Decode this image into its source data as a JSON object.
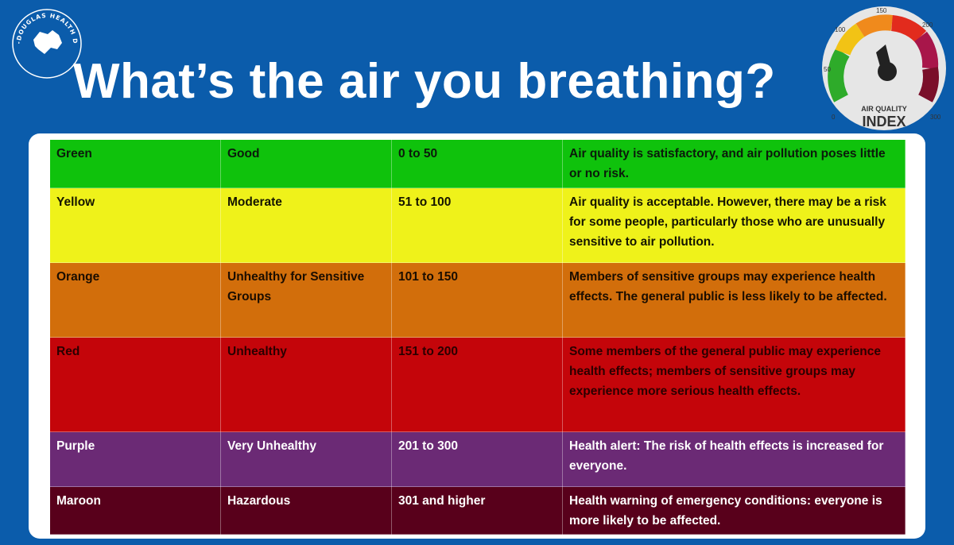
{
  "header": {
    "title": "What’s the air you breathing?",
    "logo": {
      "arc_text": "CHELAN-DOUGLAS HEALTH DISTRICT"
    },
    "gauge": {
      "ticks": [
        "0",
        "50",
        "100",
        "150",
        "200",
        "300"
      ],
      "label_small": "AIR QUALITY",
      "label_big": "INDEX",
      "needle_value": 150
    }
  },
  "table": {
    "rows": [
      {
        "color_name": "Green",
        "level": "Good",
        "range": "0 to 50",
        "description": "Air quality is satisfactory, and air pollution poses little or no risk.",
        "bg": "#0fc20c"
      },
      {
        "color_name": "Yellow",
        "level": "Moderate",
        "range": "51 to 100",
        "description": "Air quality is acceptable. However, there may be a risk for some people, particularly those who are unusually sensitive to air pollution.",
        "bg": "#eff21a"
      },
      {
        "color_name": "Orange",
        "level": "Unhealthy for Sensitive Groups",
        "range": "101 to 150",
        "description": "Members of sensitive groups may experience health effects. The general public is less likely to be affected.",
        "bg": "#d26e0b"
      },
      {
        "color_name": "Red",
        "level": "Unhealthy",
        "range": "151 to 200",
        "description": "Some members of the general public may experience health effects; members of sensitive groups may experience more serious health effects.",
        "bg": "#c4050a"
      },
      {
        "color_name": "Purple",
        "level": "Very Unhealthy",
        "range": "201 to 300",
        "description": "Health alert: The risk of health effects is increased for everyone.",
        "bg": "#6b2a75"
      },
      {
        "color_name": "Maroon",
        "level": "Hazardous",
        "range": "301 and higher",
        "description": "Health warning of emergency conditions: everyone is more likely to be affected.",
        "bg": "#58001b"
      }
    ]
  }
}
